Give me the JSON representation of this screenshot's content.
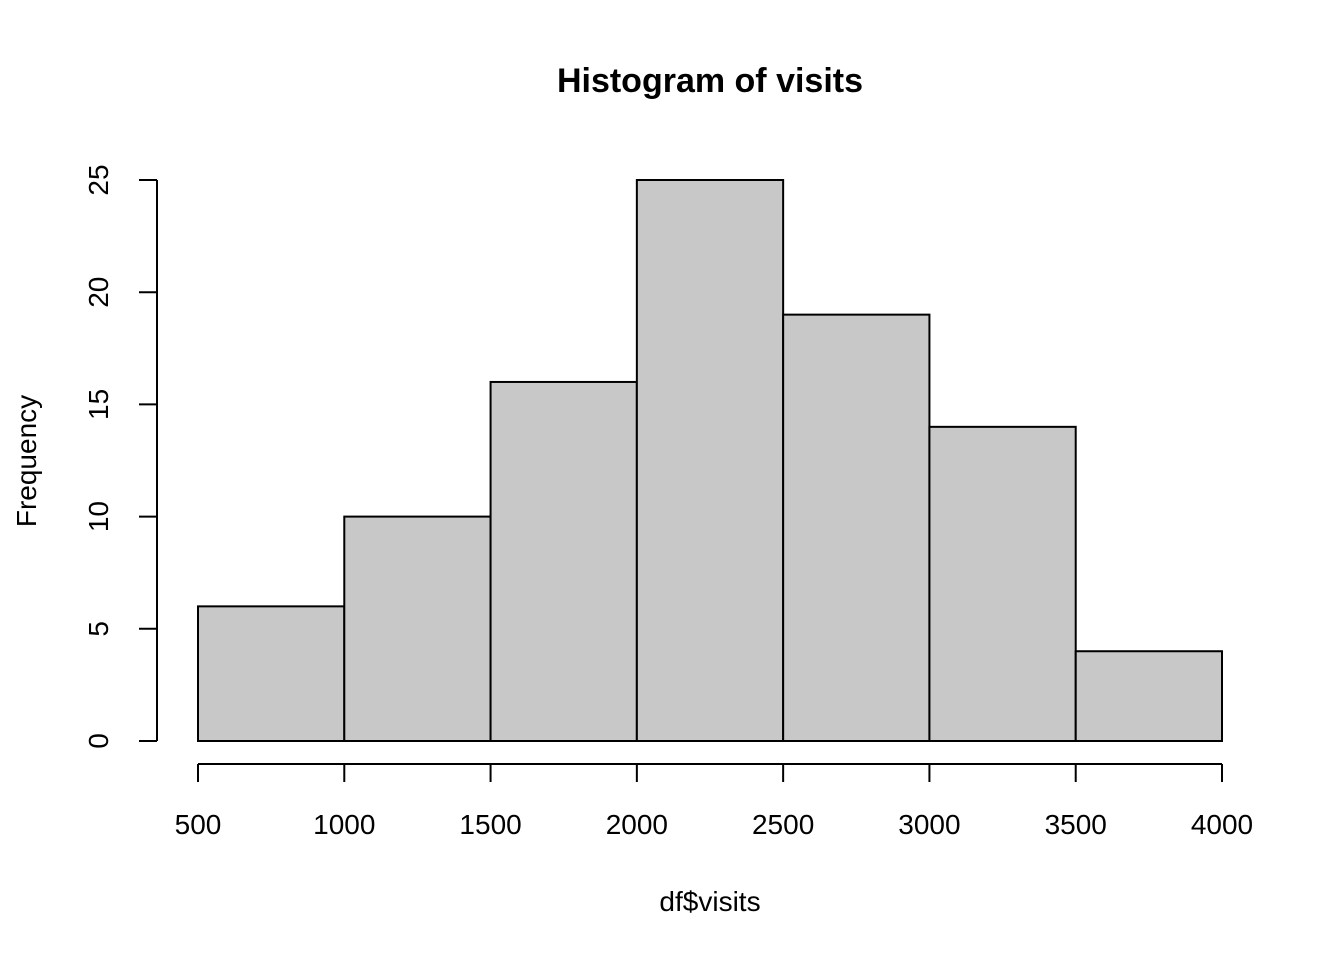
{
  "chart_data": {
    "type": "bar",
    "subtype": "histogram",
    "title": "Histogram of visits",
    "xlabel": "df$visits",
    "ylabel": "Frequency",
    "bins": [
      {
        "from": 500,
        "to": 1000,
        "count": 6
      },
      {
        "from": 1000,
        "to": 1500,
        "count": 10
      },
      {
        "from": 1500,
        "to": 2000,
        "count": 16
      },
      {
        "from": 2000,
        "to": 2500,
        "count": 25
      },
      {
        "from": 2500,
        "to": 3000,
        "count": 19
      },
      {
        "from": 3000,
        "to": 3500,
        "count": 14
      },
      {
        "from": 3500,
        "to": 4000,
        "count": 4
      }
    ],
    "x_ticks": [
      "500",
      "1000",
      "1500",
      "2000",
      "2500",
      "3000",
      "3500",
      "4000"
    ],
    "y_ticks": [
      "0",
      "5",
      "10",
      "15",
      "20",
      "25"
    ],
    "xlim": [
      500,
      4000
    ],
    "ylim": [
      0,
      25
    ],
    "grid": false,
    "colors": {
      "bar_fill": "#c8c8c8",
      "bar_stroke": "#000000"
    }
  }
}
